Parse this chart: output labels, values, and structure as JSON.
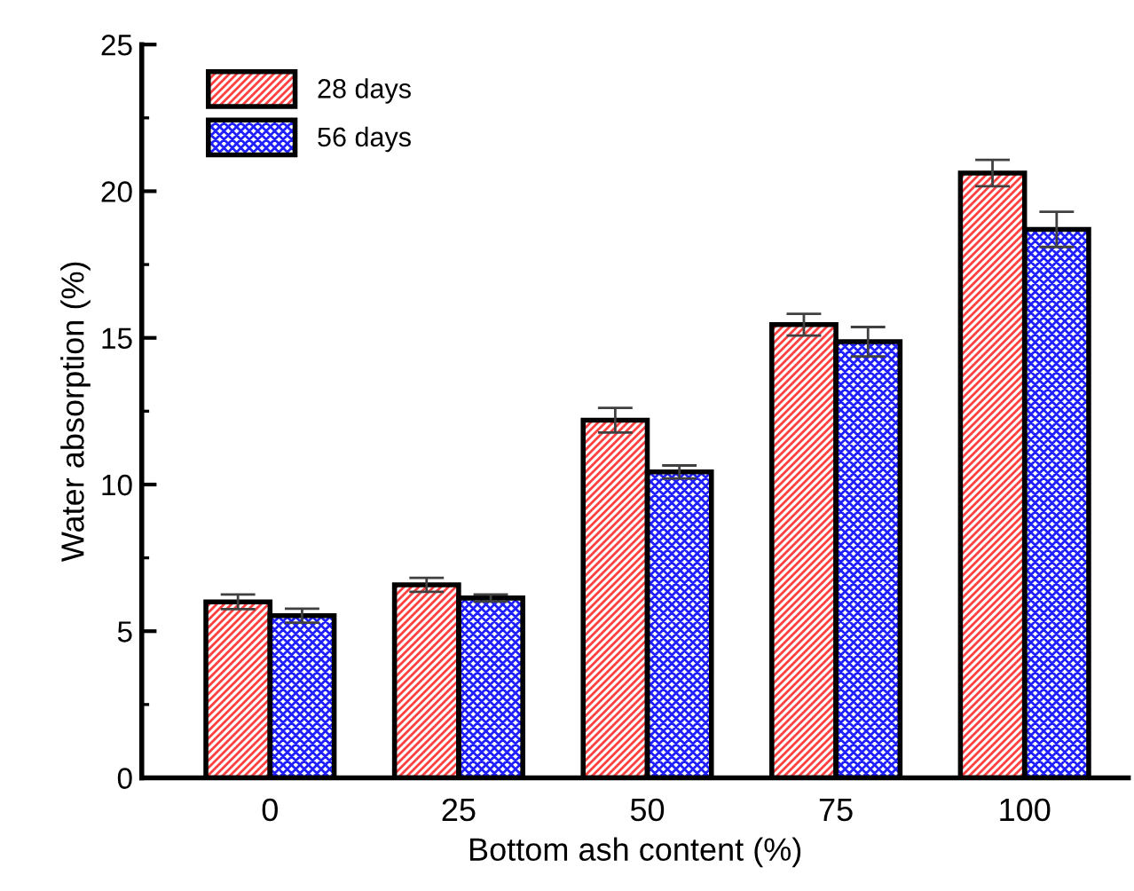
{
  "chart_data": {
    "type": "bar",
    "xlabel": "Bottom ash content (%)",
    "ylabel": "Water absorption (%)",
    "categories": [
      "0",
      "25",
      "50",
      "75",
      "100"
    ],
    "series": [
      {
        "name": "28 days",
        "color": "#ff4040",
        "values": [
          6.0,
          6.58,
          12.19,
          15.45,
          20.62
        ],
        "errors": [
          0.25,
          0.24,
          0.42,
          0.37,
          0.45
        ]
      },
      {
        "name": "56 days",
        "color": "#2020ff",
        "values": [
          5.53,
          6.13,
          10.43,
          14.87,
          18.7
        ],
        "errors": [
          0.24,
          0.12,
          0.22,
          0.5,
          0.6
        ]
      }
    ],
    "ylim": [
      0,
      25
    ],
    "yticks": [
      0,
      {
        "value": 2.5,
        "label": null
      },
      5,
      {
        "value": 7.5,
        "label": null
      },
      10,
      {
        "value": 12.5,
        "label": null
      },
      15,
      {
        "value": 17.5,
        "label": null
      },
      20,
      {
        "value": 22.5,
        "label": null
      },
      25
    ],
    "grid": false,
    "legend": "top left"
  }
}
